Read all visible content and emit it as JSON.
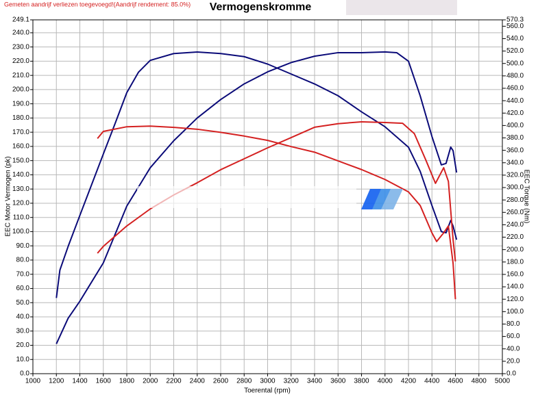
{
  "chart_data": {
    "type": "line",
    "title": "Vermogenskromme",
    "annotation": "Gemeten aandrijf verliezen toegevoegd!(Aandrijf rendement: 85.0%)",
    "xlabel": "Toerental (rpm)",
    "ylabel": "EEC Motor Vermogen (pk)",
    "y2label": "EEC Torque (Nm)",
    "grid": true,
    "xlim": [
      1000,
      5000
    ],
    "xticks": [
      1000,
      1200,
      1400,
      1600,
      1800,
      2000,
      2200,
      2400,
      2600,
      2800,
      3000,
      3200,
      3400,
      3600,
      3800,
      4000,
      4200,
      4400,
      4600,
      4800,
      5000
    ],
    "ylim": [
      0,
      249.1
    ],
    "yticks": [
      {
        "value": 0,
        "label": "0.0"
      },
      {
        "value": 10,
        "label": "10.0"
      },
      {
        "value": 20,
        "label": "20.0"
      },
      {
        "value": 30,
        "label": "30.0"
      },
      {
        "value": 40,
        "label": "40.0"
      },
      {
        "value": 50,
        "label": "50.0"
      },
      {
        "value": 60,
        "label": "60.0"
      },
      {
        "value": 70,
        "label": "70.0"
      },
      {
        "value": 80,
        "label": "80.0"
      },
      {
        "value": 90,
        "label": "90.0"
      },
      {
        "value": 100,
        "label": "100.0"
      },
      {
        "value": 110,
        "label": "110.0"
      },
      {
        "value": 120,
        "label": "120.0"
      },
      {
        "value": 130,
        "label": "130.0"
      },
      {
        "value": 140,
        "label": "140.0"
      },
      {
        "value": 150,
        "label": "150.0"
      },
      {
        "value": 160,
        "label": "160.0"
      },
      {
        "value": 170,
        "label": "170.0"
      },
      {
        "value": 180,
        "label": "180.0"
      },
      {
        "value": 190,
        "label": "190.0"
      },
      {
        "value": 200,
        "label": "200.0"
      },
      {
        "value": 210,
        "label": "210.0"
      },
      {
        "value": 220,
        "label": "220.0"
      },
      {
        "value": 230,
        "label": "230.0"
      },
      {
        "value": 240,
        "label": "240.0"
      },
      249.1
    ],
    "y2lim": [
      0,
      570.3
    ],
    "y2ticks": [
      {
        "value": 0,
        "label": "0.0"
      },
      {
        "value": 20,
        "label": "20.0"
      },
      {
        "value": 40,
        "label": "40.0"
      },
      {
        "value": 60,
        "label": "60.0"
      },
      {
        "value": 80,
        "label": "80.0"
      },
      {
        "value": 100,
        "label": "100.0"
      },
      {
        "value": 120,
        "label": "120.0"
      },
      {
        "value": 140,
        "label": "140.0"
      },
      {
        "value": 160,
        "label": "160.0"
      },
      {
        "value": 180,
        "label": "180.0"
      },
      {
        "value": 200,
        "label": "200.0"
      },
      {
        "value": 220,
        "label": "220.0"
      },
      {
        "value": 240,
        "label": "240.0"
      },
      {
        "value": 260,
        "label": "260.0"
      },
      {
        "value": 280,
        "label": "280.0"
      },
      {
        "value": 300,
        "label": "300.0"
      },
      {
        "value": 320,
        "label": "320.0"
      },
      {
        "value": 340,
        "label": "340.0"
      },
      {
        "value": 360,
        "label": "360.0"
      },
      {
        "value": 380,
        "label": "380.0"
      },
      {
        "value": 400,
        "label": "400.0"
      },
      {
        "value": 420,
        "label": "420.0"
      },
      {
        "value": 440,
        "label": "440.0"
      },
      {
        "value": 460,
        "label": "460.0"
      },
      {
        "value": 480,
        "label": "480.0"
      },
      {
        "value": 500,
        "label": "500.0"
      },
      {
        "value": 520,
        "label": "520.0"
      },
      {
        "value": 540,
        "label": "540.0"
      },
      {
        "value": 560,
        "label": "560.0"
      },
      570.3
    ],
    "series": [
      {
        "color": "#0a0a78",
        "axis": "y",
        "x": [
          1200,
          1300,
          1400,
          1600,
          1800,
          2000,
          2200,
          2400,
          2600,
          2800,
          3000,
          3200,
          3400,
          3600,
          3800,
          4000,
          4100,
          4200,
          4300,
          4400,
          4480,
          4520,
          4560,
          4580,
          4610
        ],
        "values": [
          21,
          39,
          51,
          78,
          118,
          145,
          164,
          180,
          193,
          204,
          212.5,
          219,
          223.5,
          226,
          226,
          226.5,
          226,
          220,
          195.6,
          167,
          147,
          148,
          159.5,
          157,
          141.6
        ]
      },
      {
        "color": "#0a0a78",
        "axis": "y2",
        "x": [
          1200,
          1230,
          1300,
          1400,
          1600,
          1700,
          1800,
          1900,
          2000,
          2200,
          2400,
          2600,
          2800,
          3000,
          3200,
          3400,
          3600,
          3800,
          4000,
          4200,
          4300,
          4400,
          4480,
          4520,
          4560,
          4580,
          4610
        ],
        "values": [
          122,
          167,
          205,
          255,
          354,
          403,
          453,
          486,
          505,
          516,
          518.5,
          516,
          511,
          499,
          483,
          467,
          448,
          422,
          398,
          365,
          326,
          271,
          229,
          227,
          247,
          238,
          216
        ]
      },
      {
        "color": "#d42020",
        "axis": "y",
        "x": [
          1550,
          1600,
          1800,
          2000,
          2200,
          2400,
          2600,
          2800,
          3000,
          3200,
          3400,
          3600,
          3800,
          4000,
          4150,
          4250,
          4350,
          4430,
          4500,
          4540,
          4580,
          4600
        ],
        "values": [
          84.8,
          89.6,
          104,
          116,
          125.8,
          134.4,
          143.6,
          151.3,
          159,
          166.2,
          173.5,
          176,
          177.3,
          176.8,
          176.3,
          169,
          150,
          134,
          145,
          135.4,
          94.4,
          79
        ]
      },
      {
        "color": "#d42020",
        "axis": "y2",
        "x": [
          1550,
          1600,
          1800,
          2000,
          2200,
          2400,
          2600,
          2800,
          3000,
          3200,
          3400,
          3600,
          3800,
          4000,
          4200,
          4300,
          4400,
          4440,
          4500,
          4540,
          4580,
          4600
        ],
        "values": [
          379,
          390.5,
          398,
          399,
          397,
          394,
          389,
          383,
          376,
          366,
          357,
          343,
          329,
          313,
          293,
          271,
          227,
          213,
          227,
          238,
          178,
          120
        ]
      }
    ]
  }
}
